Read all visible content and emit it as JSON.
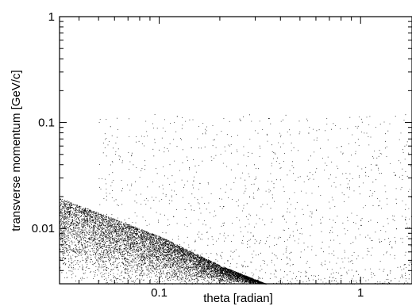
{
  "chart_data": {
    "type": "scatter",
    "title": "",
    "xlabel": "theta [radian]",
    "ylabel": "transverse momentum [GeV/c]",
    "xscale": "log",
    "yscale": "log",
    "xlim": [
      0.032,
      1.8
    ],
    "ylim": [
      0.003,
      1
    ],
    "grid": false,
    "legend": "none",
    "marker_color": "#000000",
    "x_tick_labels": [
      {
        "value": 0.1,
        "label": "0.1"
      },
      {
        "value": 1,
        "label": "1"
      }
    ],
    "y_tick_labels": [
      {
        "value": 0.01,
        "label": "0.01"
      },
      {
        "value": 0.1,
        "label": "0.1"
      },
      {
        "value": 1,
        "label": "1"
      }
    ],
    "band": {
      "description_points": [
        {
          "x": 0.032,
          "y_upper": 0.0195
        },
        {
          "x": 0.1,
          "y_upper": 0.0085
        },
        {
          "x": 0.2,
          "y_upper": 0.0045
        },
        {
          "x": 0.34,
          "y_upper": 0.003
        }
      ],
      "n_points": 9000
    },
    "sparse_points": [
      {
        "x": 0.35,
        "y": 0.11
      },
      {
        "x": 0.55,
        "y": 0.08
      },
      {
        "x": 0.8,
        "y": 0.06
      },
      {
        "x": 1.2,
        "y": 0.04
      },
      {
        "x": 0.28,
        "y": 0.02
      },
      {
        "x": 0.6,
        "y": 0.015
      },
      {
        "x": 1.0,
        "y": 0.012
      },
      {
        "x": 1.5,
        "y": 0.01
      },
      {
        "x": 0.45,
        "y": 0.006
      },
      {
        "x": 0.9,
        "y": 0.005
      },
      {
        "x": 1.4,
        "y": 0.004
      },
      {
        "x": 0.7,
        "y": 0.0035
      }
    ],
    "n_sparse": 1500
  }
}
